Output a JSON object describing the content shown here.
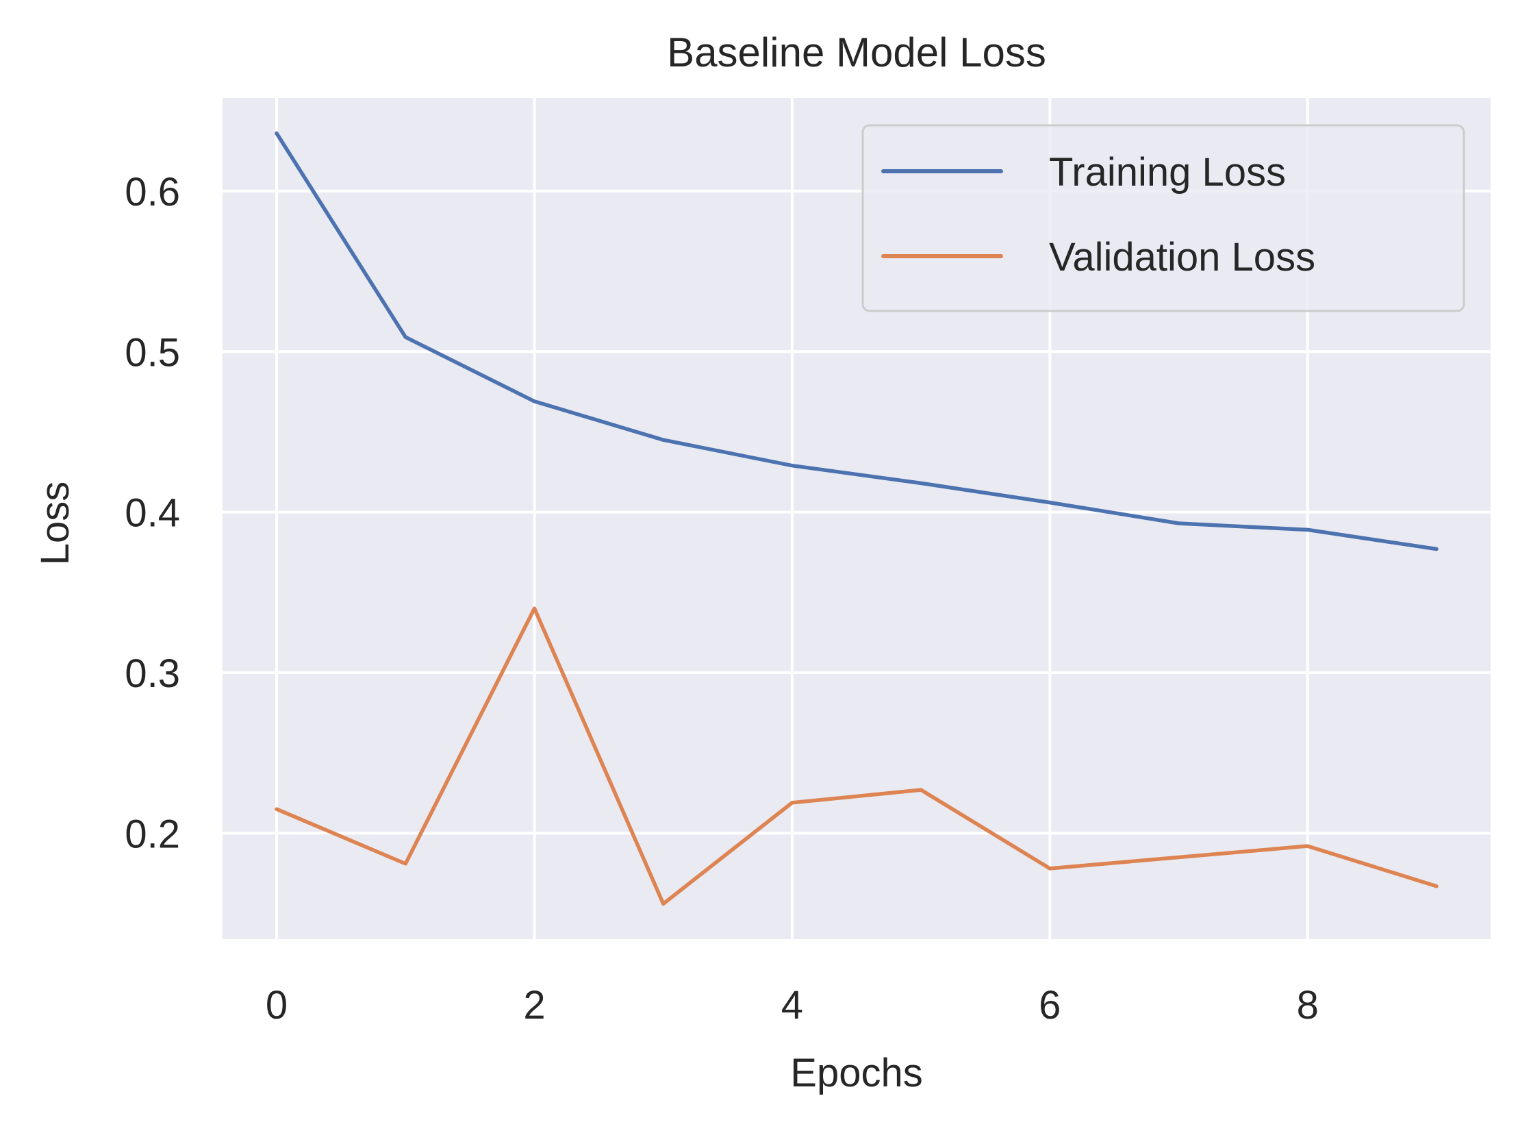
{
  "chart_data": {
    "type": "line",
    "title": "Baseline Model Loss",
    "xlabel": "Epochs",
    "ylabel": "Loss",
    "x": [
      0,
      1,
      2,
      3,
      4,
      5,
      6,
      7,
      8,
      9
    ],
    "xlim": [
      -0.42,
      9.42
    ],
    "ylim": [
      0.134,
      0.658
    ],
    "xticks": [
      0,
      2,
      4,
      6,
      8
    ],
    "xtick_labels": [
      "0",
      "2",
      "4",
      "6",
      "8"
    ],
    "yticks": [
      0.2,
      0.3,
      0.4,
      0.5,
      0.6
    ],
    "ytick_labels": [
      "0.2",
      "0.3",
      "0.4",
      "0.5",
      "0.6"
    ],
    "grid": true,
    "legend_position": "top-right",
    "series": [
      {
        "name": "Training Loss",
        "color": "#4c72b0",
        "values": [
          0.636,
          0.509,
          0.469,
          0.445,
          0.429,
          0.418,
          0.406,
          0.393,
          0.389,
          0.377
        ]
      },
      {
        "name": "Validation Loss",
        "color": "#dd8452",
        "values": [
          0.215,
          0.181,
          0.34,
          0.156,
          0.219,
          0.227,
          0.178,
          0.185,
          0.192,
          0.167
        ]
      }
    ],
    "colors": {
      "plot_background": "#eaeaf2",
      "grid": "#ffffff",
      "text": "#262626",
      "legend_border": "#cccccc"
    }
  }
}
